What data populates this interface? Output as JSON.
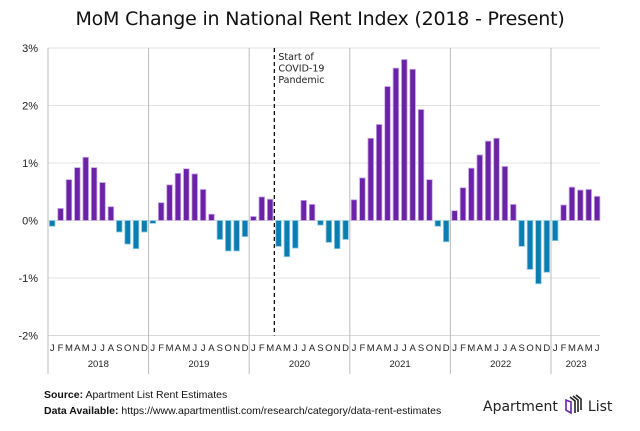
{
  "chart_data": {
    "type": "bar",
    "title": "MoM Change in National Rent Index (2018 - Present)",
    "xlabel": "",
    "ylabel": "",
    "ylim": [
      -2,
      3
    ],
    "y_ticks": [
      3,
      2,
      1,
      0,
      -1,
      -2
    ],
    "y_tick_labels": [
      "3%",
      "2%",
      "1%",
      "0%",
      "-1%",
      "-2%"
    ],
    "grid": true,
    "legend": "none",
    "years": [
      {
        "label": "2018",
        "months": [
          "J",
          "F",
          "M",
          "A",
          "M",
          "J",
          "J",
          "A",
          "S",
          "O",
          "N",
          "D"
        ]
      },
      {
        "label": "2019",
        "months": [
          "J",
          "F",
          "M",
          "A",
          "M",
          "J",
          "J",
          "A",
          "S",
          "O",
          "N",
          "D"
        ]
      },
      {
        "label": "2020",
        "months": [
          "J",
          "F",
          "M",
          "A",
          "M",
          "J",
          "J",
          "A",
          "S",
          "O",
          "N",
          "D"
        ]
      },
      {
        "label": "2021",
        "months": [
          "J",
          "F",
          "M",
          "A",
          "M",
          "J",
          "J",
          "A",
          "S",
          "O",
          "N",
          "D"
        ]
      },
      {
        "label": "2022",
        "months": [
          "J",
          "F",
          "M",
          "A",
          "M",
          "J",
          "J",
          "A",
          "S",
          "O",
          "N",
          "D"
        ]
      },
      {
        "label": "2023",
        "months": [
          "J",
          "F",
          "M",
          "A",
          "M",
          "J"
        ]
      }
    ],
    "series": [
      {
        "name": "MoM change (%)",
        "values": [
          -0.1,
          0.21,
          0.71,
          0.92,
          1.1,
          0.92,
          0.66,
          0.24,
          -0.2,
          -0.41,
          -0.49,
          -0.2,
          -0.05,
          0.31,
          0.62,
          0.82,
          0.9,
          0.81,
          0.54,
          0.11,
          -0.33,
          -0.53,
          -0.53,
          -0.28,
          0.07,
          0.41,
          0.37,
          -0.45,
          -0.63,
          -0.48,
          0.35,
          0.28,
          -0.08,
          -0.38,
          -0.49,
          -0.33,
          0.36,
          0.74,
          1.43,
          1.67,
          2.33,
          2.65,
          2.8,
          2.63,
          1.93,
          0.71,
          -0.1,
          -0.37,
          0.17,
          0.57,
          0.91,
          1.14,
          1.38,
          1.43,
          0.94,
          0.28,
          -0.45,
          -0.85,
          -1.1,
          -0.9,
          -0.35,
          0.27,
          0.58,
          0.53,
          0.54,
          0.42
        ]
      }
    ],
    "colors": {
      "positive": "#6a22a6",
      "negative": "#0b7db0",
      "positive_edge": "#c9a7e8",
      "negative_edge": "#8fcbe5"
    },
    "annotation": {
      "lines": [
        "Start of",
        "COVID-19",
        "Pandemic"
      ],
      "after_index": 26
    }
  },
  "footer": {
    "source_label": "Source:",
    "source_text": "Apartment List Rent Estimates",
    "data_label": "Data Available:",
    "data_text": "https://www.apartmentlist.com/research/category/data-rent-estimates"
  },
  "logo": {
    "left": "Apartment",
    "right": "List"
  }
}
